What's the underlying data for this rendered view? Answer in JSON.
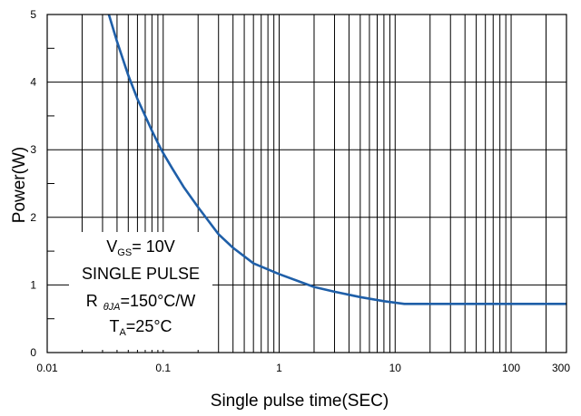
{
  "chart_data": {
    "type": "line",
    "xlabel": "Single pulse time(SEC)",
    "ylabel": "Power(W)",
    "x_scale": "log",
    "xlim": [
      0.01,
      300
    ],
    "ylim": [
      0,
      5
    ],
    "grid": true,
    "x_ticks": [
      {
        "value": 0.01,
        "label": "0.01"
      },
      {
        "value": 0.1,
        "label": "0.1"
      },
      {
        "value": 1,
        "label": "1"
      },
      {
        "value": 10,
        "label": "10"
      },
      {
        "value": 100,
        "label": "100"
      },
      {
        "value": 300,
        "label": "300"
      }
    ],
    "y_ticks": [
      {
        "value": 0,
        "label": "0"
      },
      {
        "value": 1,
        "label": "1"
      },
      {
        "value": 2,
        "label": "2"
      },
      {
        "value": 3,
        "label": "3"
      },
      {
        "value": 4,
        "label": "4"
      },
      {
        "value": 5,
        "label": "5"
      }
    ],
    "series": [
      {
        "color": "#1f5fa8",
        "x": [
          0.034,
          0.04,
          0.05,
          0.06,
          0.07,
          0.08,
          0.09,
          0.1,
          0.12,
          0.15,
          0.2,
          0.3,
          0.4,
          0.6,
          1,
          2,
          3,
          5,
          8,
          12,
          20,
          50,
          100,
          300
        ],
        "y": [
          5.0,
          4.6,
          4.1,
          3.75,
          3.5,
          3.28,
          3.1,
          2.95,
          2.72,
          2.45,
          2.15,
          1.75,
          1.55,
          1.32,
          1.16,
          0.97,
          0.9,
          0.82,
          0.76,
          0.72,
          0.72,
          0.72,
          0.72,
          0.72
        ]
      }
    ],
    "annotations": {
      "vgs": {
        "main": "V",
        "sub": "GS",
        "rest": "= 10V"
      },
      "pulse": "SINGLE PULSE",
      "rtheta": {
        "main": "R",
        "sym": "θJA",
        "rest": "=150°C/W"
      },
      "ta": {
        "main": "T",
        "sub": "A",
        "rest": "=25°C"
      }
    }
  }
}
